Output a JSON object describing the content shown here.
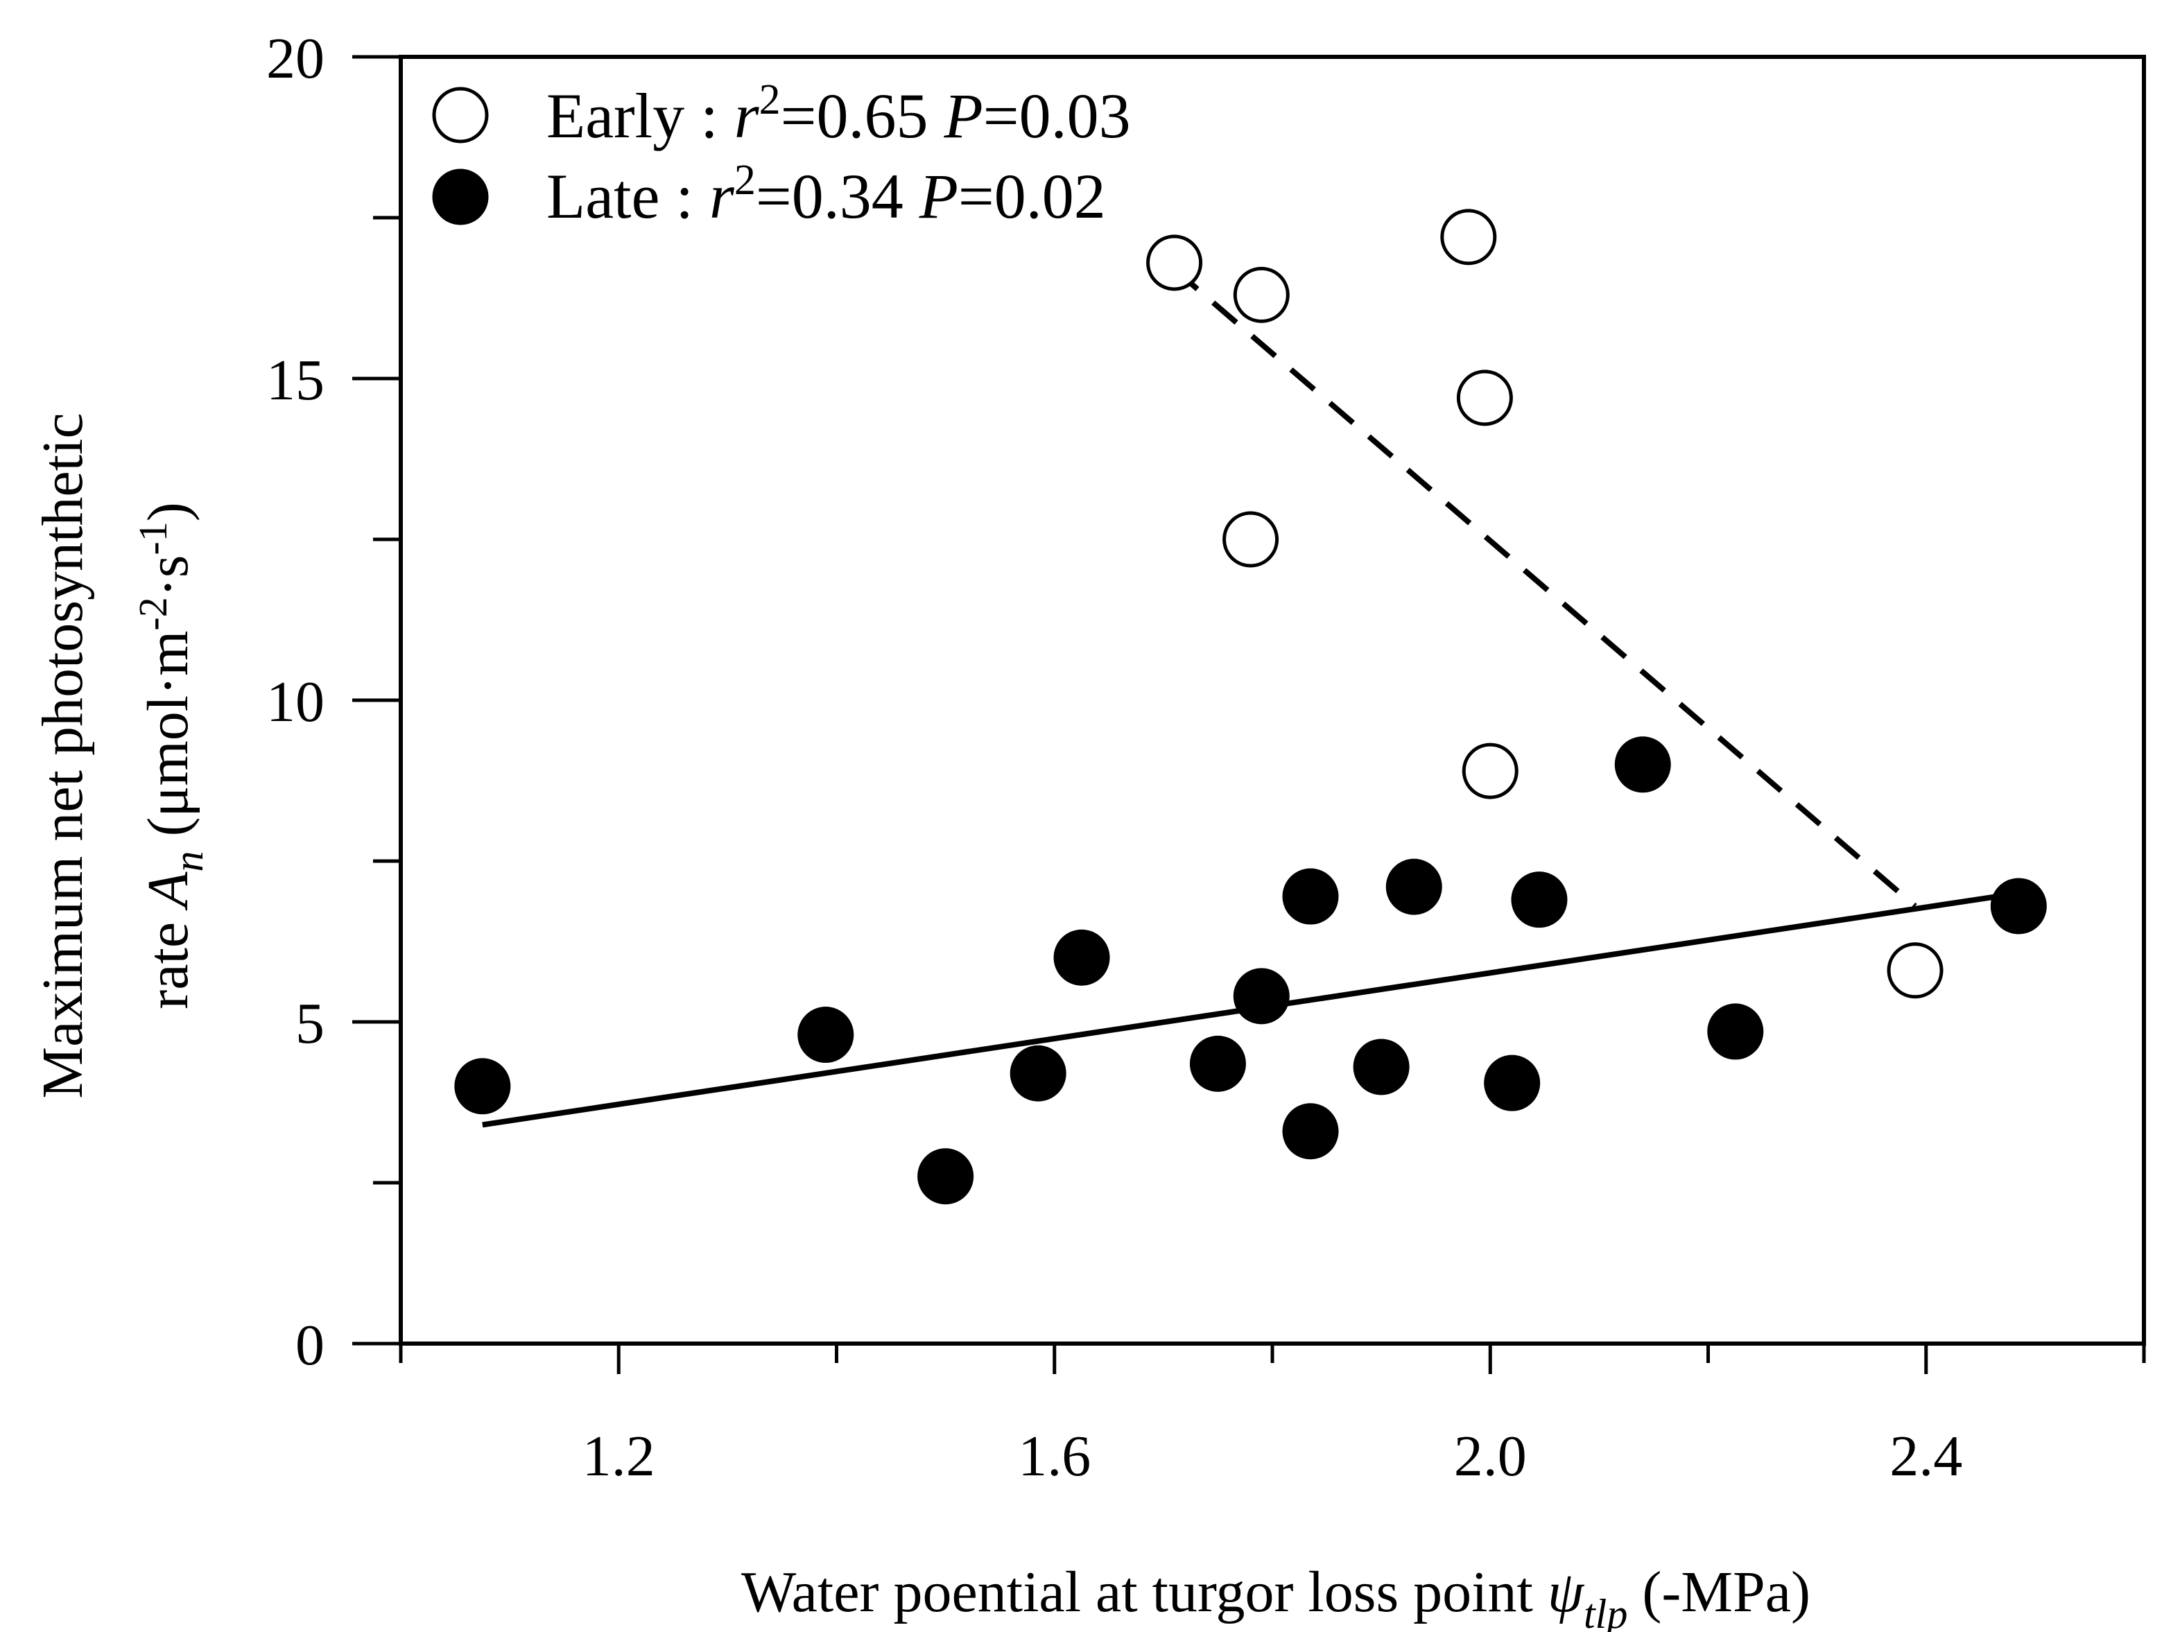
{
  "chart_data": {
    "type": "scatter",
    "xlabel": {
      "main": "Water poential at turgor loss point ",
      "symbol": "ψ",
      "subscript": "tlp",
      "unit": " (-MPa)"
    },
    "ylabel": {
      "line1": "Maximum net photosynthetic",
      "line2_prefix": "rate ",
      "symbol": "A",
      "subscript": "n",
      "unit_open": " (μmol·m",
      "unit_sup1": "-2",
      "unit_mid": "·s",
      "unit_sup2": "-1",
      "unit_close": ")"
    },
    "xlim": [
      1.0,
      2.6
    ],
    "ylim": [
      0,
      20
    ],
    "xticks_major": [
      1.2,
      1.6,
      2.0,
      2.4
    ],
    "xtick_labels": [
      "1.2",
      "1.6",
      "2.0",
      "2.4"
    ],
    "xticks_minor": [
      1.0,
      1.4,
      1.8,
      2.2,
      2.6
    ],
    "yticks_major": [
      0,
      5,
      10,
      15,
      20
    ],
    "ytick_labels": [
      "0",
      "5",
      "10",
      "15",
      "20"
    ],
    "yticks_minor": [
      2.5,
      7.5,
      12.5,
      17.5
    ],
    "grid": false,
    "legend_position": "top-left",
    "series": [
      {
        "name": "Early",
        "marker": "open-circle",
        "stats": {
          "r2_label": "r",
          "r2_sup": "2",
          "r2_value": "=0.65 ",
          "p_label": "P",
          "p_value": "=0.03"
        },
        "points": [
          {
            "x": 1.71,
            "y": 16.8
          },
          {
            "x": 1.79,
            "y": 16.3
          },
          {
            "x": 1.78,
            "y": 12.5
          },
          {
            "x": 1.98,
            "y": 17.2
          },
          {
            "x": 1.995,
            "y": 14.7
          },
          {
            "x": 2.0,
            "y": 8.9
          },
          {
            "x": 2.39,
            "y": 5.8
          }
        ],
        "fit": {
          "style": "dashed",
          "x": [
            1.71,
            2.39
          ],
          "y": [
            16.7,
            6.8
          ]
        }
      },
      {
        "name": "Late",
        "marker": "filled-circle",
        "stats": {
          "r2_label": "r",
          "r2_sup": "2",
          "r2_value": "=0.34 ",
          "p_label": "P",
          "p_value": "=0.02"
        },
        "points": [
          {
            "x": 1.075,
            "y": 4.0
          },
          {
            "x": 1.39,
            "y": 4.8
          },
          {
            "x": 1.5,
            "y": 2.6
          },
          {
            "x": 1.585,
            "y": 4.2
          },
          {
            "x": 1.625,
            "y": 6.0
          },
          {
            "x": 1.75,
            "y": 4.35
          },
          {
            "x": 1.79,
            "y": 5.4
          },
          {
            "x": 1.835,
            "y": 3.3
          },
          {
            "x": 1.835,
            "y": 6.95
          },
          {
            "x": 1.9,
            "y": 4.3
          },
          {
            "x": 1.93,
            "y": 7.1
          },
          {
            "x": 2.02,
            "y": 4.05
          },
          {
            "x": 2.045,
            "y": 6.9
          },
          {
            "x": 2.14,
            "y": 9.0
          },
          {
            "x": 2.225,
            "y": 4.85
          },
          {
            "x": 2.485,
            "y": 6.8
          }
        ],
        "fit": {
          "style": "solid",
          "x": [
            1.075,
            2.485
          ],
          "y": [
            3.4,
            7.0
          ]
        }
      }
    ]
  }
}
